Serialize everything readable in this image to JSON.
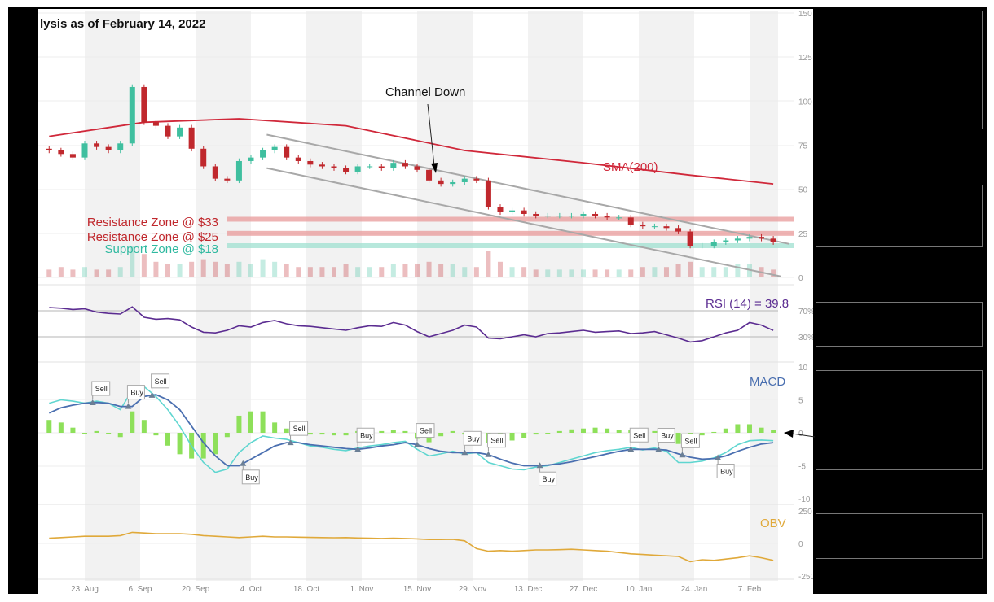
{
  "title": "lysis as of February 14, 2022",
  "colors": {
    "up": "#3fbf9f",
    "down": "#c0282d",
    "sma": "#d0283a",
    "channel": "#a8a8a8",
    "resistance": "#e89a9a",
    "support": "#9fe0d0",
    "rsi": "#5b2c91",
    "macd_fast": "#5fd6d0",
    "macd_signal": "#4a6fb0",
    "hist": "#8ee05a",
    "obv": "#e0a93a",
    "stripe": "#f2f2f2"
  },
  "chart_data": {
    "type": "candlestick-with-indicators",
    "x_ticks": [
      "23. Aug",
      "6. Sep",
      "20. Sep",
      "4. Oct",
      "18. Oct",
      "1. Nov",
      "15. Nov",
      "29. Nov",
      "13. Dec",
      "27. Dec",
      "10. Jan",
      "24. Jan",
      "7. Feb"
    ],
    "x_tick_dates": [
      "2021-08-23",
      "2021-09-06",
      "2021-09-20",
      "2021-10-04",
      "2021-10-18",
      "2021-11-01",
      "2021-11-15",
      "2021-11-29",
      "2021-12-13",
      "2021-12-27",
      "2022-01-10",
      "2022-01-24",
      "2022-02-07"
    ],
    "dates": [
      "2021-08-14",
      "2021-08-17",
      "2021-08-20",
      "2021-08-23",
      "2021-08-26",
      "2021-08-29",
      "2021-09-01",
      "2021-09-04",
      "2021-09-07",
      "2021-09-10",
      "2021-09-13",
      "2021-09-16",
      "2021-09-19",
      "2021-09-22",
      "2021-09-25",
      "2021-09-28",
      "2021-10-01",
      "2021-10-04",
      "2021-10-07",
      "2021-10-10",
      "2021-10-13",
      "2021-10-16",
      "2021-10-19",
      "2021-10-22",
      "2021-10-25",
      "2021-10-28",
      "2021-10-31",
      "2021-11-03",
      "2021-11-06",
      "2021-11-09",
      "2021-11-12",
      "2021-11-15",
      "2021-11-18",
      "2021-11-21",
      "2021-11-24",
      "2021-11-27",
      "2021-11-30",
      "2021-12-03",
      "2021-12-06",
      "2021-12-09",
      "2021-12-12",
      "2021-12-15",
      "2021-12-18",
      "2021-12-21",
      "2021-12-24",
      "2021-12-27",
      "2021-12-30",
      "2022-01-02",
      "2022-01-05",
      "2022-01-08",
      "2022-01-11",
      "2022-01-14",
      "2022-01-17",
      "2022-01-20",
      "2022-01-23",
      "2022-01-26",
      "2022-01-29",
      "2022-02-01",
      "2022-02-04",
      "2022-02-07",
      "2022-02-10",
      "2022-02-13"
    ],
    "price": {
      "y_ticks": [
        150,
        125,
        100,
        75,
        50,
        25,
        0
      ],
      "ylim": [
        0,
        150
      ],
      "close": [
        72,
        70,
        68,
        76,
        74,
        72,
        76,
        108,
        88,
        86,
        80,
        85,
        73,
        63,
        56,
        55,
        66,
        68,
        72,
        74,
        68,
        66,
        64,
        63,
        62,
        60,
        63,
        63,
        62,
        65,
        63,
        61,
        55,
        53,
        54,
        56,
        55,
        40,
        37,
        38,
        36,
        35,
        35,
        35,
        35,
        36,
        35,
        34,
        34,
        30,
        29,
        29,
        28,
        26,
        18,
        18,
        20,
        21,
        22,
        23,
        22,
        20
      ],
      "volume": [
        3,
        4,
        3,
        4,
        3,
        3,
        4,
        12,
        9,
        6,
        5,
        5,
        6,
        7,
        6,
        5,
        6,
        5,
        7,
        6,
        5,
        4,
        4,
        4,
        4,
        5,
        4,
        4,
        4,
        5,
        5,
        5,
        6,
        5,
        5,
        4,
        4,
        10,
        6,
        4,
        4,
        3,
        3,
        3,
        3,
        3,
        3,
        3,
        3,
        3,
        4,
        4,
        4,
        5,
        6,
        4,
        4,
        4,
        5,
        5,
        4,
        3
      ],
      "sma": {
        "label": "SMA(200)",
        "points": [
          [
            "2021-08-14",
            80
          ],
          [
            "2021-09-07",
            88
          ],
          [
            "2021-10-01",
            90
          ],
          [
            "2021-10-28",
            86
          ],
          [
            "2021-11-27",
            72
          ],
          [
            "2021-12-27",
            65
          ],
          [
            "2022-01-23",
            58
          ],
          [
            "2022-02-13",
            53
          ]
        ]
      },
      "channel": {
        "label": "Channel Down",
        "upper": [
          [
            "2021-10-08",
            81
          ],
          [
            "2022-02-17",
            19
          ]
        ],
        "lower": [
          [
            "2021-10-08",
            62
          ],
          [
            "2022-02-15",
            0.5
          ]
        ]
      },
      "zones": [
        {
          "label": "Resistance Zone @ $33",
          "value": 33,
          "kind": "resistance"
        },
        {
          "label": "Resistance Zone @ $25",
          "value": 25,
          "kind": "resistance"
        },
        {
          "label": "Support Zone @ $18",
          "value": 18,
          "kind": "support"
        }
      ]
    },
    "rsi": {
      "label": "RSI (14) = 39.8",
      "y_ticks": [
        "70%",
        "30%"
      ],
      "levels": [
        70,
        30
      ],
      "values": [
        75,
        74,
        72,
        73,
        68,
        66,
        65,
        76,
        60,
        57,
        58,
        56,
        45,
        37,
        36,
        40,
        47,
        45,
        52,
        55,
        50,
        47,
        46,
        44,
        42,
        40,
        44,
        47,
        46,
        52,
        48,
        38,
        30,
        35,
        40,
        48,
        45,
        28,
        27,
        30,
        33,
        30,
        35,
        36,
        38,
        40,
        37,
        38,
        39,
        35,
        36,
        38,
        33,
        28,
        22,
        24,
        30,
        36,
        40,
        52,
        48,
        39.8
      ]
    },
    "macd": {
      "label": "MACD",
      "y_ticks": [
        10,
        5,
        0,
        -5,
        -10
      ],
      "ylim": [
        -10,
        10
      ],
      "fast": [
        4.5,
        5,
        4.8,
        4.5,
        4.8,
        4.5,
        3.5,
        6.5,
        7,
        5.5,
        3.5,
        1,
        -2,
        -4.5,
        -6,
        -5.5,
        -3,
        -1.5,
        -0.5,
        -0.8,
        -1,
        -1.5,
        -2,
        -2.2,
        -2.5,
        -2.7,
        -2.3,
        -2,
        -1.8,
        -1.5,
        -1.3,
        -2.5,
        -3.5,
        -3.2,
        -2.8,
        -3.2,
        -3,
        -4.5,
        -5,
        -5.5,
        -5.6,
        -5.2,
        -5,
        -4.5,
        -4,
        -3.5,
        -3,
        -2.7,
        -2.5,
        -2.2,
        -2.6,
        -2.3,
        -2.8,
        -4.5,
        -4.5,
        -4.3,
        -3.8,
        -3,
        -1.8,
        -1.2,
        -1.1,
        -1.2
      ],
      "signal": [
        3,
        3.8,
        4.2,
        4.5,
        4.6,
        4.5,
        4,
        4,
        5.5,
        5.8,
        5,
        3.5,
        1,
        -1.5,
        -3.5,
        -5,
        -5,
        -4,
        -3,
        -2,
        -1.5,
        -1.5,
        -1.8,
        -2,
        -2.2,
        -2.4,
        -2.5,
        -2.3,
        -2,
        -1.8,
        -1.5,
        -1.8,
        -2.4,
        -2.8,
        -3,
        -3,
        -3,
        -3.3,
        -4,
        -4.6,
        -5,
        -5,
        -4.9,
        -4.7,
        -4.4,
        -4,
        -3.6,
        -3.2,
        -2.8,
        -2.5,
        -2.5,
        -2.5,
        -2.6,
        -3.2,
        -3.7,
        -4,
        -3.9,
        -3.5,
        -2.8,
        -2.2,
        -1.7,
        -1.5
      ],
      "signals": [
        {
          "date": "2021-08-25",
          "label": "Sell"
        },
        {
          "date": "2021-09-03",
          "label": "Buy"
        },
        {
          "date": "2021-09-09",
          "label": "Sell"
        },
        {
          "date": "2021-10-02",
          "label": "Buy"
        },
        {
          "date": "2021-10-14",
          "label": "Sell"
        },
        {
          "date": "2021-10-31",
          "label": "Buy"
        },
        {
          "date": "2021-11-15",
          "label": "Sell"
        },
        {
          "date": "2021-11-27",
          "label": "Buy"
        },
        {
          "date": "2021-12-03",
          "label": "Sell"
        },
        {
          "date": "2021-12-16",
          "label": "Buy"
        },
        {
          "date": "2022-01-08",
          "label": "Sell"
        },
        {
          "date": "2022-01-15",
          "label": "Buy"
        },
        {
          "date": "2022-01-21",
          "label": "Sell"
        },
        {
          "date": "2022-01-30",
          "label": "Buy"
        }
      ]
    },
    "obv": {
      "label": "OBV",
      "y_ticks": [
        "250",
        "0",
        "-250"
      ],
      "ylim": [
        -250,
        250
      ],
      "values": [
        40,
        45,
        50,
        55,
        55,
        55,
        60,
        85,
        80,
        75,
        75,
        75,
        70,
        60,
        55,
        50,
        45,
        50,
        55,
        50,
        50,
        48,
        46,
        45,
        44,
        45,
        42,
        40,
        38,
        40,
        38,
        35,
        30,
        30,
        32,
        20,
        -40,
        -60,
        -55,
        -60,
        -55,
        -50,
        -50,
        -48,
        -45,
        -50,
        -55,
        -60,
        -70,
        -80,
        -85,
        -90,
        -95,
        -100,
        -140,
        -125,
        -130,
        -120,
        -110,
        -95,
        -110,
        -130
      ]
    }
  }
}
